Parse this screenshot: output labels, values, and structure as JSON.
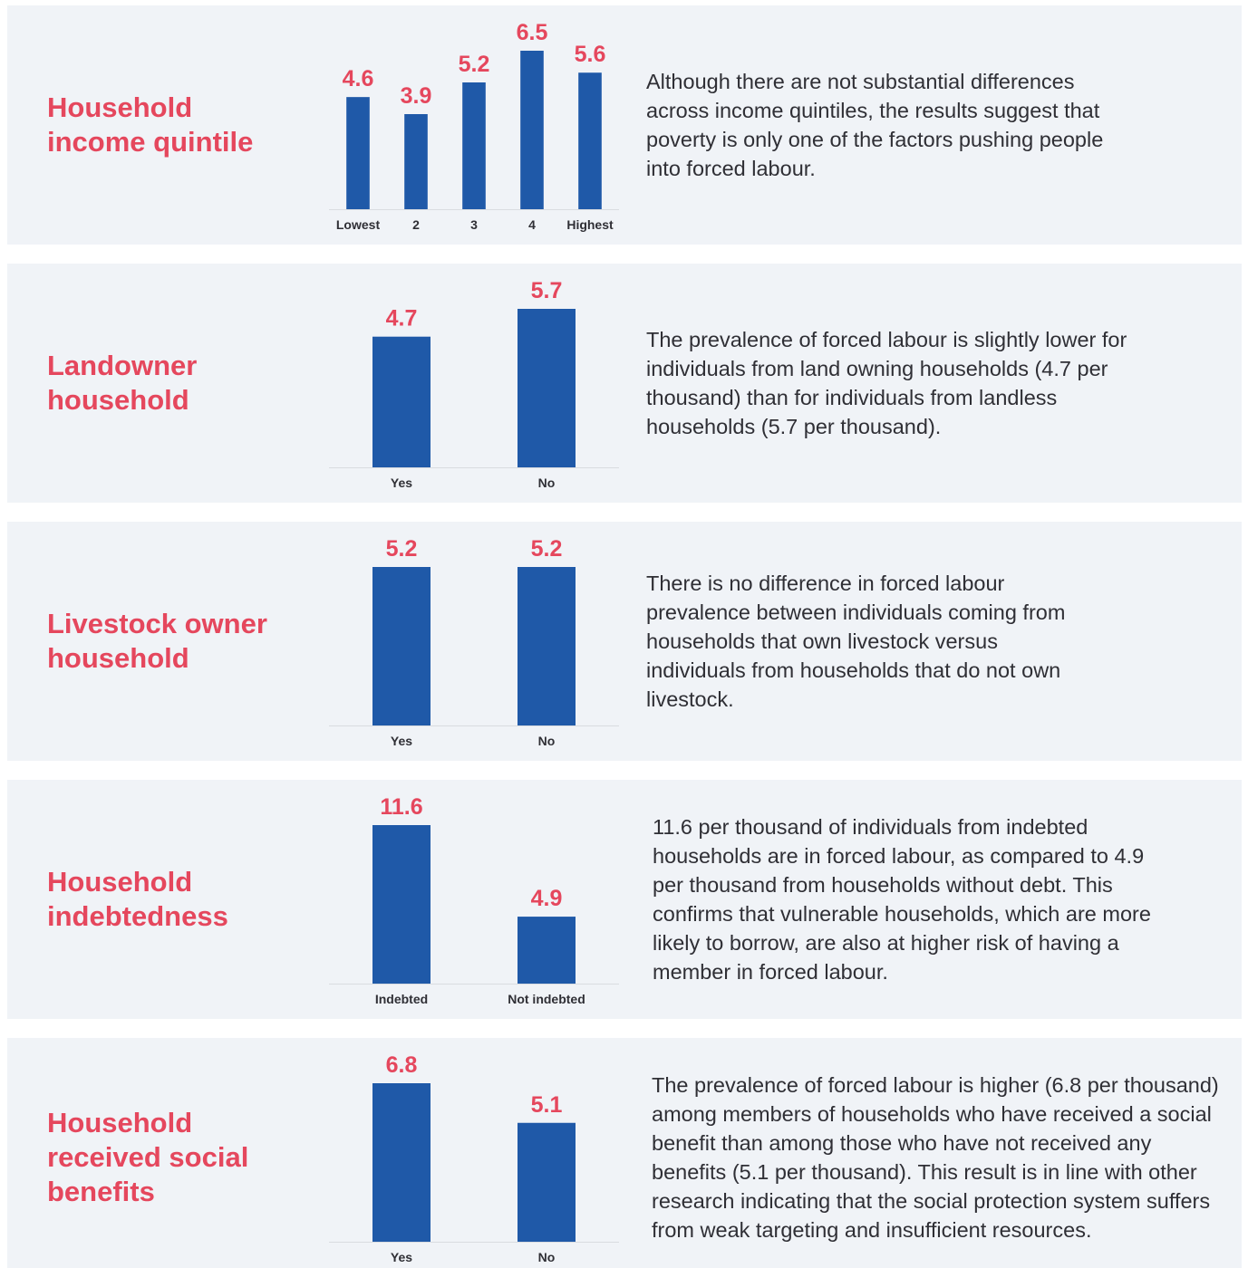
{
  "chart_data": [
    {
      "type": "bar",
      "title": "Household income quintile",
      "categories": [
        "Lowest",
        "2",
        "3",
        "4",
        "Highest"
      ],
      "values": [
        4.6,
        3.9,
        5.2,
        6.5,
        5.6
      ],
      "color": "#1f59a8",
      "description": "Although there are not substantial differences across income quintiles, the results suggest that poverty is only one of the factors pushing people into forced labour."
    },
    {
      "type": "bar",
      "title": "Landowner household",
      "categories": [
        "Yes",
        "No"
      ],
      "values": [
        4.7,
        5.7
      ],
      "color": "#1f59a8",
      "description": "The prevalence of forced labour is slightly lower for individuals from land owning households (4.7 per thousand) than for individuals from landless households (5.7 per thousand)."
    },
    {
      "type": "bar",
      "title": "Livestock owner household",
      "categories": [
        "Yes",
        "No"
      ],
      "values": [
        5.2,
        5.2
      ],
      "color": "#1f59a8",
      "description": "There is no difference in forced labour prevalence between individuals coming from households that own livestock versus individuals from households that do not own livestock."
    },
    {
      "type": "bar",
      "title": "Household indebtedness",
      "categories": [
        "Indebted",
        "Not indebted"
      ],
      "values": [
        11.6,
        4.9
      ],
      "color": "#1f59a8",
      "description": "11.6 per thousand of individuals from indebted households are in forced labour, as compared to 4.9 per thousand from households without debt. This confirms that vulnerable households, which are more likely to borrow, are also at higher risk of having a member in forced labour."
    },
    {
      "type": "bar",
      "title": "Household received social benefits",
      "categories": [
        "Yes",
        "No"
      ],
      "values": [
        6.8,
        5.1
      ],
      "color": "#1f59a8",
      "description": "The prevalence of forced labour is higher (6.8 per thousand) among members of households who have received a social benefit than among those who have not received any benefits (5.1 per thousand). This result is in line with other research indicating that the social protection system suffers from weak targeting and insufficient resources."
    }
  ]
}
